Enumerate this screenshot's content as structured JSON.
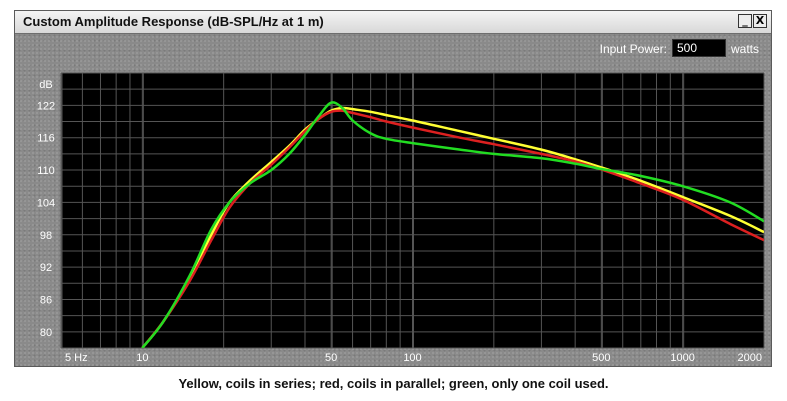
{
  "window": {
    "title": "Custom Amplitude Response (dB-SPL/Hz at 1 m)",
    "minimize_label": "_",
    "close_label": "X"
  },
  "input_power": {
    "label": "Input Power:",
    "value": "500",
    "unit": "watts"
  },
  "chart_data": {
    "type": "line",
    "title": "",
    "xlabel": "",
    "ylabel": "dB",
    "x_scale": "log",
    "xlim": [
      5,
      2000
    ],
    "ylim": [
      77,
      128
    ],
    "grid": true,
    "x_tick_labels": [
      {
        "value": 5,
        "label": "5 Hz"
      },
      {
        "value": 10,
        "label": "10"
      },
      {
        "value": 50,
        "label": "50"
      },
      {
        "value": 100,
        "label": "100"
      },
      {
        "value": 500,
        "label": "500"
      },
      {
        "value": 1000,
        "label": "1000"
      },
      {
        "value": 2000,
        "label": "2000"
      }
    ],
    "y_ticks": [
      80,
      86,
      92,
      98,
      104,
      110,
      116,
      122
    ],
    "series": [
      {
        "color": "#ffff33",
        "points": [
          [
            10,
            77
          ],
          [
            12,
            82
          ],
          [
            15,
            90
          ],
          [
            18,
            98
          ],
          [
            21,
            104
          ],
          [
            25,
            108
          ],
          [
            30,
            111.5
          ],
          [
            35,
            114.5
          ],
          [
            40,
            117.5
          ],
          [
            45,
            119.5
          ],
          [
            50,
            121
          ],
          [
            55,
            121.5
          ],
          [
            60,
            121.3
          ],
          [
            70,
            120.8
          ],
          [
            80,
            120.2
          ],
          [
            100,
            119.2
          ],
          [
            150,
            117.2
          ],
          [
            200,
            115.8
          ],
          [
            300,
            113.8
          ],
          [
            400,
            112
          ],
          [
            500,
            110.5
          ],
          [
            700,
            108
          ],
          [
            1000,
            105
          ],
          [
            1500,
            101.5
          ],
          [
            2000,
            98.5
          ]
        ]
      },
      {
        "color": "#dd2020",
        "points": [
          [
            10,
            77
          ],
          [
            12,
            82
          ],
          [
            15,
            89.5
          ],
          [
            18,
            97
          ],
          [
            21,
            103
          ],
          [
            25,
            107.5
          ],
          [
            30,
            111
          ],
          [
            35,
            114.2
          ],
          [
            40,
            117.2
          ],
          [
            45,
            119.5
          ],
          [
            50,
            120.8
          ],
          [
            55,
            121
          ],
          [
            60,
            120.6
          ],
          [
            70,
            119.8
          ],
          [
            80,
            119
          ],
          [
            100,
            117.9
          ],
          [
            150,
            116
          ],
          [
            200,
            114.8
          ],
          [
            300,
            113
          ],
          [
            400,
            111.6
          ],
          [
            500,
            110.1
          ],
          [
            700,
            107.5
          ],
          [
            1000,
            104.5
          ],
          [
            1500,
            100
          ],
          [
            2000,
            97
          ]
        ]
      },
      {
        "color": "#22dd22",
        "points": [
          [
            10,
            77
          ],
          [
            12,
            82
          ],
          [
            15,
            90.5
          ],
          [
            18,
            99
          ],
          [
            21,
            104
          ],
          [
            25,
            107.5
          ],
          [
            30,
            110
          ],
          [
            35,
            113
          ],
          [
            40,
            116.5
          ],
          [
            45,
            120
          ],
          [
            50,
            122.5
          ],
          [
            55,
            121.5
          ],
          [
            60,
            119.2
          ],
          [
            70,
            116.8
          ],
          [
            80,
            115.8
          ],
          [
            100,
            115
          ],
          [
            150,
            113.8
          ],
          [
            200,
            113
          ],
          [
            300,
            112.2
          ],
          [
            400,
            111.2
          ],
          [
            500,
            110.2
          ],
          [
            700,
            108.9
          ],
          [
            1000,
            107
          ],
          [
            1500,
            104
          ],
          [
            2000,
            100.5
          ]
        ]
      }
    ]
  },
  "caption": "Yellow, coils in series; red, coils in parallel; green, only one coil used."
}
